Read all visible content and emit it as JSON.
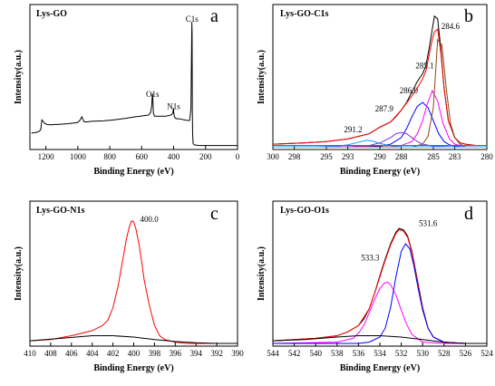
{
  "chart_data": [
    {
      "type": "line",
      "panel": "a",
      "title": "Lys-GO",
      "xlabel": "Binding Energy (eV)",
      "ylabel": "Intensity(a.u.)",
      "xlim": [
        1300,
        0
      ],
      "xticks": [
        1200,
        1000,
        800,
        600,
        400,
        200,
        0
      ],
      "annotations": [
        {
          "text": "C1s",
          "x": 285,
          "y": 1.0
        },
        {
          "text": "O1s",
          "x": 532,
          "y": 0.4
        },
        {
          "text": "N1s",
          "x": 400,
          "y": 0.3
        }
      ],
      "series": [
        {
          "color": "#000000",
          "x": [
            1290,
            1260,
            1240,
            1232,
            1225,
            1215,
            1205,
            1190,
            1170,
            1150,
            1120,
            1090,
            1060,
            1030,
            1000,
            985,
            975,
            968,
            960,
            940,
            920,
            900,
            880,
            860,
            840,
            820,
            800,
            780,
            760,
            740,
            720,
            700,
            680,
            660,
            640,
            620,
            600,
            580,
            560,
            545,
            537,
            534,
            532,
            530,
            527,
            520,
            505,
            490,
            470,
            450,
            430,
            415,
            405,
            401,
            399,
            395,
            385,
            370,
            350,
            330,
            310,
            300,
            292,
            288,
            286,
            284.5,
            283,
            281,
            278,
            270,
            250,
            220,
            180,
            140,
            100,
            60,
            20,
            0
          ],
          "y": [
            0.11,
            0.115,
            0.125,
            0.14,
            0.215,
            0.2,
            0.185,
            0.178,
            0.176,
            0.178,
            0.18,
            0.182,
            0.185,
            0.19,
            0.195,
            0.215,
            0.24,
            0.22,
            0.2,
            0.2,
            0.203,
            0.205,
            0.206,
            0.207,
            0.208,
            0.21,
            0.212,
            0.215,
            0.218,
            0.221,
            0.225,
            0.228,
            0.232,
            0.236,
            0.24,
            0.243,
            0.247,
            0.25,
            0.253,
            0.27,
            0.33,
            0.41,
            0.425,
            0.38,
            0.27,
            0.245,
            0.245,
            0.245,
            0.245,
            0.245,
            0.25,
            0.255,
            0.27,
            0.31,
            0.27,
            0.24,
            0.225,
            0.225,
            0.22,
            0.215,
            0.21,
            0.21,
            0.3,
            0.75,
            1.0,
            0.9,
            0.3,
            0.1,
            0.025,
            0.015,
            0.012,
            0.01,
            0.01,
            0.01,
            0.01,
            0.01,
            0.01,
            0.01
          ]
        }
      ]
    },
    {
      "type": "line",
      "panel": "b",
      "title": "Lys-GO-C1s",
      "xlabel": "Binding Energy (eV)",
      "ylabel": "Intensity(a.u.)",
      "xlim": [
        300,
        280
      ],
      "xticks": [
        300,
        298,
        295,
        293,
        290,
        288,
        285,
        283,
        280
      ],
      "annotations": [
        {
          "text": "284.6",
          "x": 283.4,
          "y": 0.9
        },
        {
          "text": "285.1",
          "x": 285.8,
          "y": 0.6
        },
        {
          "text": "286.0",
          "x": 287.3,
          "y": 0.41
        },
        {
          "text": "287.9",
          "x": 289.6,
          "y": 0.27
        },
        {
          "text": "291.2",
          "x": 292.5,
          "y": 0.11
        }
      ],
      "series": [
        {
          "color": "#000000",
          "x": [
            300,
            297,
            295,
            293,
            292,
            291,
            290,
            289,
            288.5,
            288,
            287.5,
            287,
            286.5,
            286,
            285.7,
            285.4,
            285.1,
            284.9,
            284.6,
            284.3,
            284,
            283.6,
            283,
            282.5,
            282,
            281,
            280
          ],
          "y": [
            0.02,
            0.03,
            0.04,
            0.06,
            0.08,
            0.1,
            0.15,
            0.19,
            0.23,
            0.28,
            0.34,
            0.42,
            0.5,
            0.56,
            0.62,
            0.75,
            0.9,
            1.0,
            0.98,
            0.75,
            0.45,
            0.2,
            0.07,
            0.03,
            0.02,
            0.01,
            0.01
          ]
        },
        {
          "color": "#ff0000",
          "x": [
            300,
            297,
            295,
            293,
            291,
            290,
            289,
            288,
            287,
            286.5,
            286,
            285.7,
            285.4,
            285.1,
            284.9,
            284.6,
            284.3,
            284,
            283.6,
            283,
            282.5,
            282,
            281,
            280
          ],
          "y": [
            0.02,
            0.03,
            0.04,
            0.06,
            0.1,
            0.15,
            0.19,
            0.28,
            0.39,
            0.45,
            0.52,
            0.58,
            0.7,
            0.82,
            0.88,
            0.9,
            0.72,
            0.45,
            0.2,
            0.07,
            0.03,
            0.02,
            0.01,
            0.01
          ]
        },
        {
          "color": "#0000ff",
          "x": [
            300,
            292,
            290,
            289,
            288,
            287.5,
            287,
            286.5,
            286,
            285.5,
            285,
            284.5,
            284,
            283.5,
            283,
            282,
            280
          ],
          "y": [
            0,
            0,
            0.005,
            0.02,
            0.07,
            0.14,
            0.23,
            0.31,
            0.34,
            0.3,
            0.2,
            0.1,
            0.04,
            0.015,
            0.005,
            0,
            0
          ]
        },
        {
          "color": "#ff00ff",
          "x": [
            300,
            289,
            288,
            287,
            286.5,
            286,
            285.6,
            285.1,
            284.6,
            284.1,
            283.5,
            283,
            282,
            280
          ],
          "y": [
            0,
            0,
            0.01,
            0.04,
            0.1,
            0.2,
            0.32,
            0.43,
            0.35,
            0.18,
            0.06,
            0.02,
            0,
            0
          ]
        },
        {
          "color": "#8b4513",
          "x": [
            300,
            287,
            286,
            285.5,
            285,
            284.6,
            284.2,
            283.8,
            283.4,
            283,
            282.5,
            282,
            280
          ],
          "y": [
            0,
            0,
            0.02,
            0.08,
            0.3,
            0.82,
            0.78,
            0.45,
            0.18,
            0.07,
            0.02,
            0,
            0
          ]
        },
        {
          "color": "#8a2be2",
          "x": [
            300,
            293,
            291,
            290,
            289,
            288.5,
            288,
            287.5,
            287,
            286.5,
            286,
            285,
            283,
            280
          ],
          "y": [
            0,
            0,
            0.01,
            0.03,
            0.07,
            0.1,
            0.11,
            0.1,
            0.07,
            0.04,
            0.02,
            0.005,
            0,
            0
          ]
        },
        {
          "color": "#1e90ff",
          "x": [
            300,
            296,
            294,
            293,
            292,
            291.2,
            290.5,
            290,
            289,
            288,
            286,
            280
          ],
          "y": [
            0,
            0,
            0.005,
            0.015,
            0.035,
            0.05,
            0.04,
            0.025,
            0.01,
            0,
            0,
            0
          ]
        },
        {
          "color": "#2e8b57",
          "x": [
            300,
            290,
            285,
            280
          ],
          "y": [
            0.01,
            0.01,
            0.01,
            0.01
          ]
        }
      ]
    },
    {
      "type": "line",
      "panel": "c",
      "title": "Lys-GO-N1s",
      "xlabel": "Binding Energy (eV)",
      "ylabel": "Intensity(a.u.)",
      "xlim": [
        410,
        390
      ],
      "xticks": [
        410,
        408,
        406,
        404,
        402,
        400,
        398,
        396,
        394,
        392,
        390
      ],
      "annotations": [
        {
          "text": "400.0",
          "x": 398.5,
          "y": 0.95
        }
      ],
      "series": [
        {
          "color": "#ff0000",
          "x": [
            410,
            408,
            406,
            404,
            403,
            402.5,
            402,
            401.5,
            401,
            400.7,
            400.4,
            400.2,
            400,
            399.8,
            399.5,
            399.2,
            399,
            398.5,
            398,
            397.5,
            397,
            396,
            395,
            394,
            392,
            390
          ],
          "y": [
            0.02,
            0.03,
            0.06,
            0.1,
            0.14,
            0.18,
            0.28,
            0.45,
            0.68,
            0.82,
            0.92,
            0.96,
            0.95,
            0.9,
            0.78,
            0.62,
            0.5,
            0.3,
            0.14,
            0.06,
            0.03,
            0.01,
            0.0,
            0.0,
            0.0,
            0.0
          ]
        },
        {
          "color": "#000000",
          "x": [
            410,
            407,
            404,
            402,
            400,
            398,
            396,
            394,
            392,
            390
          ],
          "y": [
            0.02,
            0.04,
            0.06,
            0.06,
            0.05,
            0.03,
            0.015,
            0.005,
            0.0,
            0.0
          ]
        }
      ]
    },
    {
      "type": "line",
      "panel": "d",
      "title": "Lys-GO-O1s",
      "xlabel": "Binding Energy (eV)",
      "ylabel": "Intensity(a.u.)",
      "xlim": [
        544,
        524
      ],
      "xticks": [
        544,
        542,
        540,
        538,
        536,
        534,
        532,
        530,
        528,
        526,
        524
      ],
      "annotations": [
        {
          "text": "533.3",
          "x": 534.9,
          "y": 0.65
        },
        {
          "text": "531.6",
          "x": 529.5,
          "y": 0.92
        }
      ],
      "series": [
        {
          "color": "#000000",
          "x": [
            544,
            542,
            540,
            538,
            537,
            536,
            535.5,
            535,
            534.5,
            534,
            533.5,
            533,
            532.5,
            532.2,
            531.8,
            531.4,
            531,
            530.5,
            530,
            529.5,
            529,
            528,
            527,
            526,
            524
          ],
          "y": [
            0.02,
            0.03,
            0.04,
            0.06,
            0.09,
            0.14,
            0.19,
            0.27,
            0.39,
            0.53,
            0.66,
            0.78,
            0.87,
            0.9,
            0.89,
            0.84,
            0.72,
            0.5,
            0.28,
            0.12,
            0.05,
            0.01,
            0.0,
            0.0,
            0.0
          ]
        },
        {
          "color": "#ff0000",
          "x": [
            544,
            540,
            538,
            537,
            536,
            535,
            534.5,
            534,
            533.5,
            533,
            532.5,
            532.2,
            531.8,
            531.4,
            531,
            530.5,
            530,
            529.5,
            529,
            528,
            526,
            524
          ],
          "y": [
            0.02,
            0.04,
            0.06,
            0.09,
            0.14,
            0.27,
            0.39,
            0.52,
            0.65,
            0.77,
            0.86,
            0.89,
            0.88,
            0.83,
            0.71,
            0.49,
            0.27,
            0.12,
            0.05,
            0.01,
            0.0,
            0.0
          ]
        },
        {
          "color": "#ff00ff",
          "x": [
            544,
            538,
            536.5,
            536,
            535.5,
            535,
            534.5,
            534,
            533.6,
            533.3,
            533,
            532.5,
            532,
            531.5,
            531,
            530,
            528,
            524
          ],
          "y": [
            0,
            0.01,
            0.04,
            0.08,
            0.14,
            0.24,
            0.34,
            0.43,
            0.47,
            0.48,
            0.46,
            0.38,
            0.26,
            0.15,
            0.07,
            0.01,
            0,
            0
          ]
        },
        {
          "color": "#0000ff",
          "x": [
            544,
            536,
            535,
            534,
            533.5,
            533,
            532.5,
            532,
            531.6,
            531.2,
            530.8,
            530.4,
            530,
            529.5,
            529,
            528,
            526,
            524
          ],
          "y": [
            0,
            0,
            0.01,
            0.05,
            0.12,
            0.28,
            0.52,
            0.72,
            0.78,
            0.74,
            0.6,
            0.42,
            0.26,
            0.12,
            0.05,
            0.01,
            0,
            0
          ]
        },
        {
          "color": "#000000",
          "x": [
            544,
            541,
            538,
            536,
            534,
            532,
            530,
            528,
            526,
            524
          ],
          "y": [
            0.02,
            0.03,
            0.05,
            0.06,
            0.06,
            0.05,
            0.03,
            0.01,
            0.0,
            0.0
          ]
        }
      ]
    }
  ]
}
